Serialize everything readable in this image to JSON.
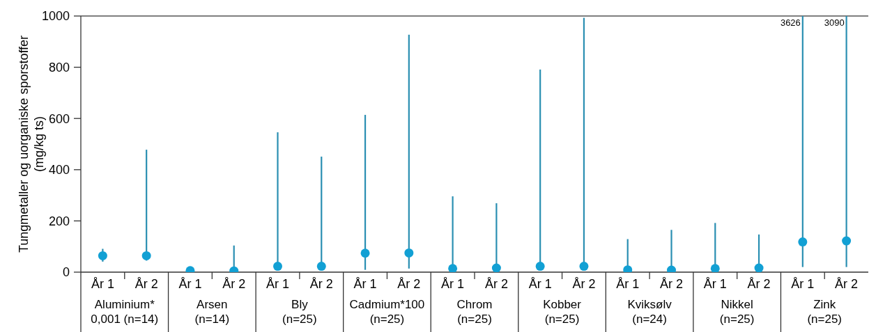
{
  "chart_data": {
    "type": "scatter",
    "ylabel": "Tungmetaller  og uorganiske sporstoffer\n(mg/kg ts)",
    "categories": [
      "År 1",
      "År 2",
      "År 1",
      "År 2",
      "År 1",
      "År 2",
      "År 1",
      "År 2",
      "År 1",
      "År 2",
      "År 1",
      "År 2",
      "År 1",
      "År 2",
      "År 1",
      "År 2",
      "År 1",
      "År 2"
    ],
    "series": [
      {
        "color": "#12a0d4",
        "values": [
          64,
          64,
          6,
          5,
          23,
          23,
          74,
          75,
          14,
          16,
          23,
          23,
          9,
          8,
          14,
          16,
          118,
          122
        ],
        "errors": [
          [
            41,
            91
          ],
          [
            45,
            478
          ],
          null,
          [
            0,
            104
          ],
          [
            10,
            546
          ],
          [
            10,
            451
          ],
          [
            9,
            614
          ],
          [
            14,
            927
          ],
          [
            5,
            296
          ],
          [
            5,
            269
          ],
          [
            10,
            791
          ],
          [
            10,
            993
          ],
          [
            3,
            129
          ],
          [
            3,
            165
          ],
          [
            5,
            192
          ],
          [
            5,
            147
          ],
          [
            20,
            3626
          ],
          [
            20,
            3090
          ]
        ]
      }
    ],
    "annotations": [
      "Aluminium*\n0,001 (n=14)",
      "Arsen\n(n=14)",
      "Bly\n(n=25)",
      "Cadmium*100\n(n=25)",
      "Chrom\n(n=25)",
      "Kobber\n(n=25)",
      "Kviksølv\n(n=24)",
      "Nikkel\n(n=25)",
      "Zink\n(n=25)",
      "3626",
      "3090"
    ],
    "ylim": [
      0,
      1000
    ],
    "yticks": [
      0,
      200,
      400,
      600,
      800,
      1000
    ],
    "marker": "circle",
    "grid": false
  }
}
